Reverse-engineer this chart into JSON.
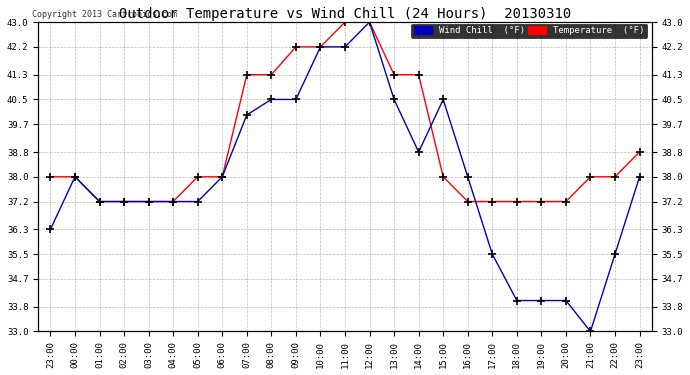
{
  "title": "Outdoor Temperature vs Wind Chill (24 Hours)  20130310",
  "copyright": "Copyright 2013 Cartronics.com",
  "background_color": "#ffffff",
  "grid_color": "#aaaaaa",
  "x_labels": [
    "23:00",
    "00:00",
    "01:00",
    "02:00",
    "03:00",
    "04:00",
    "05:00",
    "06:00",
    "07:00",
    "08:00",
    "09:00",
    "10:00",
    "11:00",
    "12:00",
    "13:00",
    "14:00",
    "15:00",
    "16:00",
    "17:00",
    "18:00",
    "19:00",
    "20:00",
    "21:00",
    "22:00",
    "23:00"
  ],
  "ylim": [
    33.0,
    43.0
  ],
  "yticks": [
    33.0,
    33.8,
    34.7,
    35.5,
    36.3,
    37.2,
    38.0,
    38.8,
    39.7,
    40.5,
    41.3,
    42.2,
    43.0
  ],
  "temp_color": "#ff0000",
  "windchill_color": "#0000bb",
  "marker": "+",
  "marker_size": 6,
  "marker_color": "#000000",
  "temperature": [
    38.0,
    38.0,
    37.2,
    37.2,
    37.2,
    37.2,
    38.0,
    38.0,
    41.3,
    41.3,
    42.2,
    42.2,
    43.0,
    43.0,
    41.3,
    41.3,
    38.0,
    37.2,
    37.2,
    37.2,
    37.2,
    37.2,
    38.0,
    38.0,
    38.8
  ],
  "windchill": [
    36.3,
    38.0,
    37.2,
    37.2,
    37.2,
    37.2,
    37.2,
    38.0,
    40.0,
    40.5,
    40.5,
    42.2,
    42.2,
    43.0,
    40.5,
    38.8,
    40.5,
    38.0,
    35.5,
    34.0,
    34.0,
    34.0,
    33.0,
    35.5,
    38.0
  ],
  "legend_windchill_bg": "#0000bb",
  "legend_temp_bg": "#ff0000",
  "legend_windchill_label": "Wind Chill  (°F)",
  "legend_temp_label": "Temperature  (°F)"
}
